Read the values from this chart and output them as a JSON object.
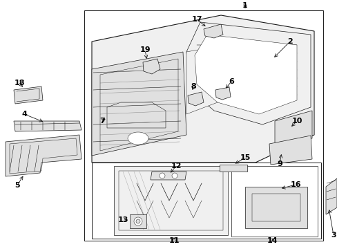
{
  "bg_color": "#ffffff",
  "line_color": "#1a1a1a",
  "border_color": "#555555",
  "fill_light": "#f0f0f0",
  "fill_mid": "#e0e0e0",
  "fill_dark": "#cccccc",
  "lw_main": 0.8,
  "lw_detail": 0.5,
  "lw_thin": 0.35,
  "label_fs": 7.5,
  "figw": 4.89,
  "figh": 3.6,
  "dpi": 100
}
